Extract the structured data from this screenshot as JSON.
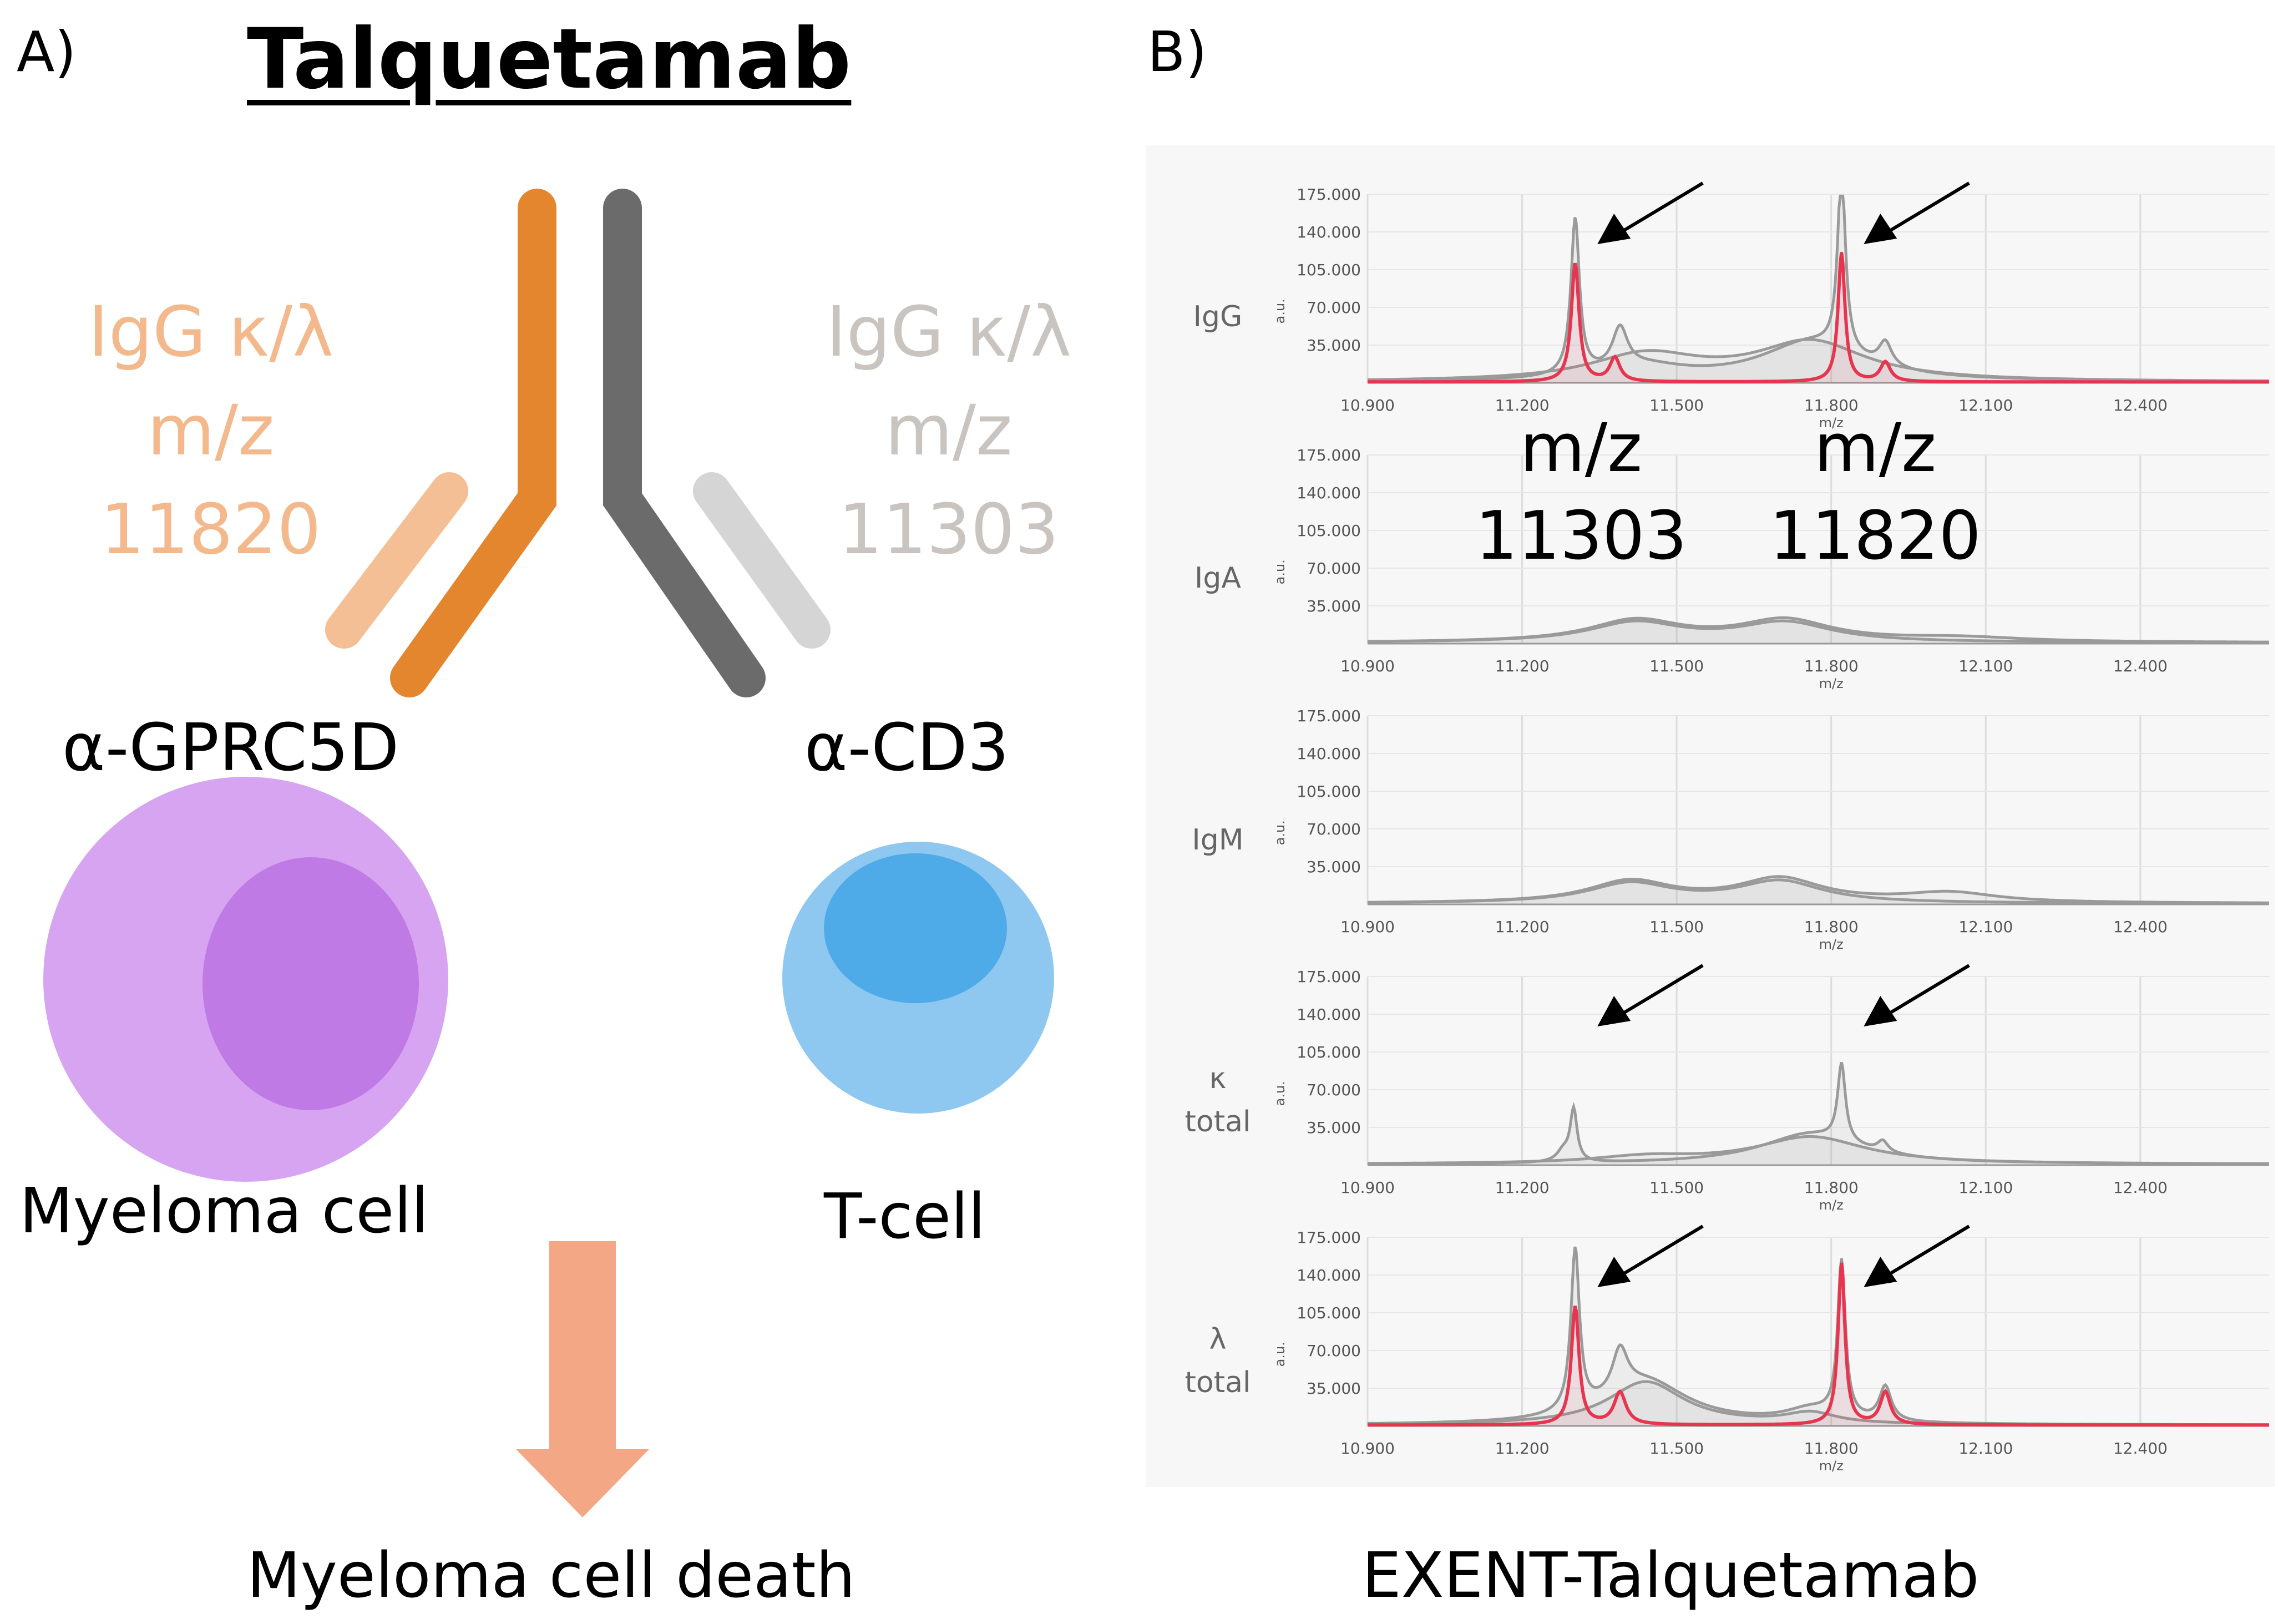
{
  "panels": {
    "a": "A)",
    "b": "B)"
  },
  "title": "Talquetamab",
  "left_arm": {
    "line1": "IgG κ/λ",
    "line2": "m/z",
    "line3": "11820"
  },
  "right_arm": {
    "line1": "IgG κ/λ",
    "line2": "m/z",
    "line3": "11303"
  },
  "targets": {
    "left": "α-GPRC5D",
    "right": "α-CD3"
  },
  "cells": {
    "left": "Myeloma cell",
    "right": "T-cell"
  },
  "outcome": "Myeloma cell death",
  "caption_b": "EXENT-Talquetamab",
  "annotation": {
    "mz1": "m/z",
    "val1": "11303",
    "mz2": "m/z",
    "val2": "11820"
  },
  "colors": {
    "orange": "#e3862d",
    "orange_light": "#f4bf94",
    "gray_dark": "#6b6b6b",
    "gray_light": "#d5d5d5",
    "mz_orange": "#f3b98c",
    "mz_gray": "#c9c4c0",
    "myeloma_outer": "#d6a4f0",
    "myeloma_inner": "#c07ae6",
    "tcell_outer": "#8ec8f0",
    "tcell_inner": "#4fabe8",
    "arrow": "#f3a784",
    "trace_gray": "#9a9a9a",
    "trace_red": "#e8354f",
    "trace_pink": "#f05a8c",
    "panel_bg": "#f7f7f7"
  },
  "chart_data": [
    {
      "type": "line",
      "row_label": [
        "IgG"
      ],
      "xlabel": "m/z",
      "ylabel": "a.u.",
      "x_ticks": [
        "10.900",
        "11.200",
        "11.500",
        "11.800",
        "12.100",
        "12.400"
      ],
      "y_ticks": [
        "175.000",
        "140.000",
        "105.000",
        "70.000",
        "35.000"
      ],
      "xlim": [
        10900,
        12650
      ],
      "ylim": [
        0,
        175000
      ],
      "arrows_at": [
        11303,
        11820
      ],
      "series": [
        {
          "name": "total",
          "color": "gray",
          "peaks": [
            [
              11303,
              145000,
              10
            ],
            [
              11390,
              38000,
              18
            ],
            [
              11440,
              12000,
              100
            ],
            [
              11820,
              170000,
              9
            ],
            [
              11905,
              22000,
              15
            ],
            [
              11760,
              36000,
              120
            ]
          ]
        },
        {
          "name": "envelope",
          "color": "gray",
          "peaks": [
            [
              11440,
              24000,
              130
            ],
            [
              11760,
              36000,
              130
            ]
          ]
        },
        {
          "name": "talquetamab",
          "color": "red",
          "peaks": [
            [
              11303,
              110000,
              9
            ],
            [
              11380,
              22000,
              12
            ],
            [
              11820,
              120000,
              8
            ],
            [
              11905,
              18000,
              12
            ]
          ]
        }
      ]
    },
    {
      "type": "line",
      "row_label": [
        "IgA"
      ],
      "xlabel": "m/z",
      "ylabel": "a.u.",
      "x_ticks": [
        "10.900",
        "11.200",
        "11.500",
        "11.800",
        "12.100",
        "12.400"
      ],
      "y_ticks": [
        "175.000",
        "140.000",
        "105.000",
        "70.000",
        "35.000"
      ],
      "xlim": [
        10900,
        12650
      ],
      "ylim": [
        0,
        175000
      ],
      "arrows_at": [],
      "series": [
        {
          "name": "total",
          "color": "gray",
          "peaks": [
            [
              11420,
              20000,
              110
            ],
            [
              11710,
              20000,
              110
            ],
            [
              12050,
              4000,
              150
            ]
          ]
        },
        {
          "name": "envelope",
          "color": "gray",
          "peaks": [
            [
              11420,
              18000,
              110
            ],
            [
              11710,
              18000,
              110
            ]
          ]
        }
      ]
    },
    {
      "type": "line",
      "row_label": [
        "IgM"
      ],
      "xlabel": "m/z",
      "ylabel": "a.u.",
      "x_ticks": [
        "10.900",
        "11.200",
        "11.500",
        "11.800",
        "12.100",
        "12.400"
      ],
      "y_ticks": [
        "175.000",
        "140.000",
        "105.000",
        "70.000",
        "35.000"
      ],
      "xlim": [
        10900,
        12650
      ],
      "ylim": [
        0,
        175000
      ],
      "arrows_at": [],
      "series": [
        {
          "name": "total",
          "color": "gray",
          "peaks": [
            [
              11410,
              20000,
              100
            ],
            [
              11700,
              22000,
              100
            ],
            [
              12030,
              9000,
              110
            ]
          ]
        },
        {
          "name": "envelope",
          "color": "gray",
          "peaks": [
            [
              11410,
              18000,
              100
            ],
            [
              11700,
              20000,
              100
            ]
          ]
        }
      ]
    },
    {
      "type": "line",
      "row_label": [
        "κ",
        "total"
      ],
      "xlabel": "m/z",
      "ylabel": "a.u.",
      "x_ticks": [
        "10.900",
        "11.200",
        "11.500",
        "11.800",
        "12.100",
        "12.400"
      ],
      "y_ticks": [
        "175.000",
        "140.000",
        "105.000",
        "70.000",
        "35.000"
      ],
      "xlim": [
        10900,
        12650
      ],
      "ylim": [
        0,
        175000
      ],
      "arrows_at": [
        11303,
        11820
      ],
      "series": [
        {
          "name": "total",
          "color": "gray",
          "peaks": [
            [
              11300,
              48000,
              8
            ],
            [
              11280,
              10000,
              15
            ],
            [
              11820,
              72000,
              9
            ],
            [
              11760,
              28000,
              120
            ],
            [
              11900,
              10000,
              12
            ]
          ]
        },
        {
          "name": "envelope",
          "color": "gray",
          "peaks": [
            [
              11760,
              25000,
              130
            ],
            [
              11440,
              6000,
              120
            ]
          ]
        }
      ]
    },
    {
      "type": "line",
      "row_label": [
        "λ",
        "total"
      ],
      "xlabel": "m/z",
      "ylabel": "a.u.",
      "x_ticks": [
        "10.900",
        "11.200",
        "11.500",
        "11.800",
        "12.100",
        "12.400"
      ],
      "y_ticks": [
        "175.000",
        "140.000",
        "105.000",
        "70.000",
        "35.000"
      ],
      "xlim": [
        10900,
        12650
      ],
      "ylim": [
        0,
        175000
      ],
      "arrows_at": [
        11303,
        11820
      ],
      "series": [
        {
          "name": "total",
          "color": "gray",
          "peaks": [
            [
              11303,
              150000,
              10
            ],
            [
              11390,
              40000,
              18
            ],
            [
              11440,
              40000,
              100
            ],
            [
              11820,
              145000,
              9
            ],
            [
              11905,
              32000,
              14
            ],
            [
              11760,
              12000,
              60
            ]
          ]
        },
        {
          "name": "envelope",
          "color": "gray",
          "peaks": [
            [
              11440,
              40000,
              90
            ],
            [
              11760,
              10000,
              60
            ]
          ]
        },
        {
          "name": "talquetamab",
          "color": "red",
          "peaks": [
            [
              11303,
              110000,
              9
            ],
            [
              11390,
              30000,
              14
            ],
            [
              11820,
              150000,
              8
            ],
            [
              11905,
              30000,
              12
            ]
          ]
        }
      ]
    }
  ]
}
